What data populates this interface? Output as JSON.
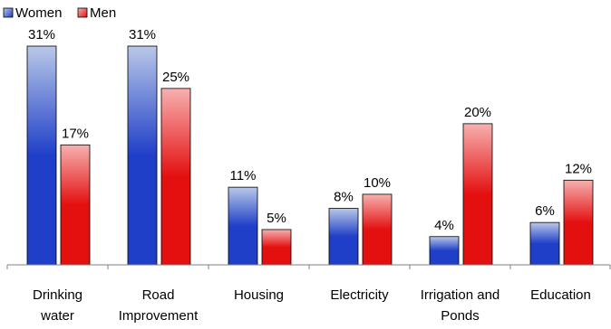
{
  "chart_data": {
    "type": "bar",
    "categories": [
      [
        "Drinking",
        "water"
      ],
      [
        "Road",
        "Improvement"
      ],
      [
        "Housing"
      ],
      [
        "Electricity"
      ],
      [
        "Irrigation and",
        "Ponds"
      ],
      [
        "Education"
      ]
    ],
    "series": [
      {
        "name": "Women",
        "values": [
          31,
          31,
          11,
          8,
          4,
          6
        ],
        "labels": [
          "31%",
          "31%",
          "11%",
          "8%",
          "4%",
          "6%"
        ],
        "color_dark": "#1f3fc8",
        "color_light": "#b9c8e8"
      },
      {
        "name": "Men",
        "values": [
          17,
          25,
          5,
          10,
          20,
          12
        ],
        "labels": [
          "17%",
          "25%",
          "5%",
          "10%",
          "20%",
          "12%"
        ],
        "color_dark": "#e41010",
        "color_light": "#f7b0b0"
      }
    ],
    "title": "",
    "xlabel": "",
    "ylabel": "",
    "ylim": [
      0,
      31
    ],
    "grid": false,
    "legend": "top-left"
  }
}
